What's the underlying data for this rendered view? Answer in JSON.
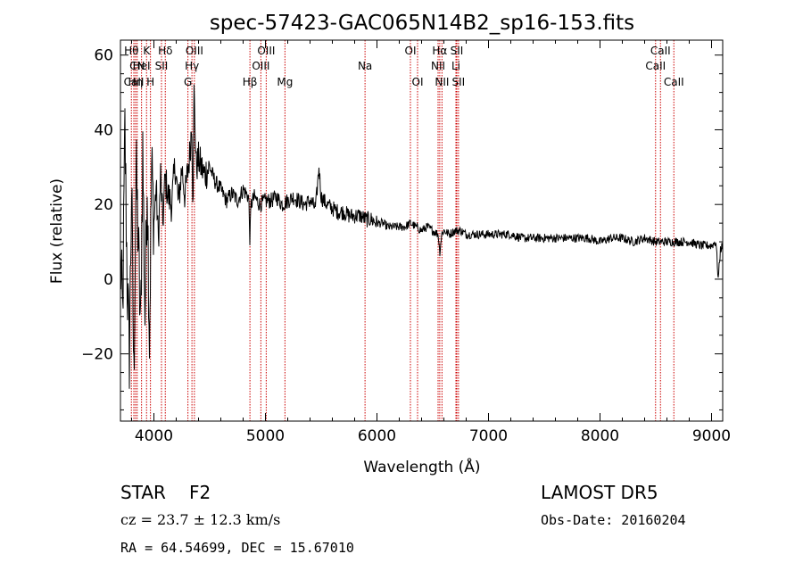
{
  "chart_data": {
    "type": "line",
    "title": "spec-57423-GAC065N14B2_sp16-153.fits",
    "xlabel": "Wavelength (Å)",
    "ylabel": "Flux (relative)",
    "xlim": [
      3700,
      9100
    ],
    "ylim": [
      -38,
      64
    ],
    "xticks": [
      "4000",
      "5000",
      "6000",
      "7000",
      "8000",
      "9000"
    ],
    "yticks": [
      "−20",
      "0",
      "20",
      "40",
      "60"
    ],
    "line_color": "#cc0000",
    "lines": [
      {
        "name": "Hθ",
        "x": 3798,
        "row": 1
      },
      {
        "name": "CaII",
        "x": 3820,
        "row": 3
      },
      {
        "name": "Hη",
        "x": 3835,
        "row": 3
      },
      {
        "name": "CN",
        "x": 3850,
        "row": 2
      },
      {
        "name": "HeI",
        "x": 3889,
        "row": 2
      },
      {
        "name": "K",
        "x": 3934,
        "row": 1
      },
      {
        "name": "H",
        "x": 3969,
        "row": 3
      },
      {
        "name": "SII",
        "x": 4068,
        "row": 2
      },
      {
        "name": "Hδ",
        "x": 4102,
        "row": 1
      },
      {
        "name": "Hγ",
        "x": 4341,
        "row": 2
      },
      {
        "name": "G",
        "x": 4305,
        "row": 3
      },
      {
        "name": "OIII",
        "x": 4363,
        "row": 1
      },
      {
        "name": "Hβ",
        "x": 4861,
        "row": 3
      },
      {
        "name": "OIII",
        "x": 4959,
        "row": 2
      },
      {
        "name": "OIII",
        "x": 5007,
        "row": 1
      },
      {
        "name": "Mg",
        "x": 5175,
        "row": 3
      },
      {
        "name": "Na",
        "x": 5893,
        "row": 2
      },
      {
        "name": "OI",
        "x": 6300,
        "row": 1
      },
      {
        "name": "OI",
        "x": 6364,
        "row": 3
      },
      {
        "name": "NII",
        "x": 6548,
        "row": 2
      },
      {
        "name": "Hα",
        "x": 6563,
        "row": 1
      },
      {
        "name": "NII",
        "x": 6583,
        "row": 3
      },
      {
        "name": "Li",
        "x": 6708,
        "row": 2
      },
      {
        "name": "SII",
        "x": 6716,
        "row": 1
      },
      {
        "name": "SII",
        "x": 6731,
        "row": 3
      },
      {
        "name": "CaII",
        "x": 8498,
        "row": 2
      },
      {
        "name": "CaII",
        "x": 8542,
        "row": 1
      },
      {
        "name": "CaII",
        "x": 8662,
        "row": 3
      }
    ],
    "spectrum": {
      "x": [
        3700,
        3720,
        3740,
        3760,
        3780,
        3800,
        3820,
        3840,
        3860,
        3880,
        3900,
        3920,
        3940,
        3960,
        3980,
        4000,
        4020,
        4040,
        4060,
        4080,
        4100,
        4130,
        4160,
        4190,
        4220,
        4250,
        4280,
        4300,
        4320,
        4340,
        4350,
        4360,
        4380,
        4400,
        4450,
        4500,
        4550,
        4600,
        4650,
        4700,
        4750,
        4800,
        4850,
        4861,
        4870,
        4900,
        4950,
        5000,
        5050,
        5100,
        5150,
        5200,
        5250,
        5300,
        5350,
        5400,
        5450,
        5480,
        5500,
        5550,
        5600,
        5650,
        5700,
        5750,
        5800,
        5850,
        5900,
        5950,
        6000,
        6050,
        6100,
        6150,
        6200,
        6250,
        6300,
        6350,
        6400,
        6450,
        6500,
        6550,
        6563,
        6580,
        6600,
        6650,
        6700,
        6750,
        6800,
        6900,
        7000,
        7100,
        7200,
        7300,
        7400,
        7500,
        7600,
        7700,
        7800,
        7900,
        8000,
        8100,
        8200,
        8300,
        8400,
        8500,
        8600,
        8700,
        8800,
        8900,
        9000,
        9040,
        9060,
        9080,
        9100
      ],
      "y": [
        5,
        -10,
        40,
        0,
        -20,
        25,
        -28,
        30,
        10,
        -15,
        35,
        -10,
        28,
        -16,
        30,
        15,
        25,
        10,
        28,
        15,
        27,
        22,
        20,
        31,
        20,
        30,
        22,
        28,
        33,
        42,
        20,
        50,
        30,
        32,
        28,
        30,
        26,
        24,
        21,
        23,
        21,
        24,
        22,
        10,
        20,
        22,
        20,
        21,
        21,
        22,
        20,
        21,
        22,
        21,
        20,
        21,
        19,
        30,
        22,
        20,
        19,
        18,
        18,
        17,
        17,
        17,
        16,
        16,
        15,
        15,
        14,
        14,
        14,
        14,
        15,
        14,
        13,
        14,
        13,
        12,
        7,
        12,
        13,
        12,
        13,
        13,
        12,
        12,
        12,
        12,
        12,
        11,
        11,
        11,
        11,
        11,
        11,
        11,
        10,
        11,
        11,
        10,
        11,
        10,
        10,
        10,
        10,
        9,
        9,
        10,
        0,
        8,
        9
      ]
    }
  },
  "info": {
    "class": "STAR",
    "subclass": "F2",
    "cz": "cz = 23.7 ± 12.3 km/s",
    "coords": "RA =  64.54699, DEC =  15.67010",
    "survey": "LAMOST DR5",
    "obsdate": "Obs-Date: 20160204"
  }
}
